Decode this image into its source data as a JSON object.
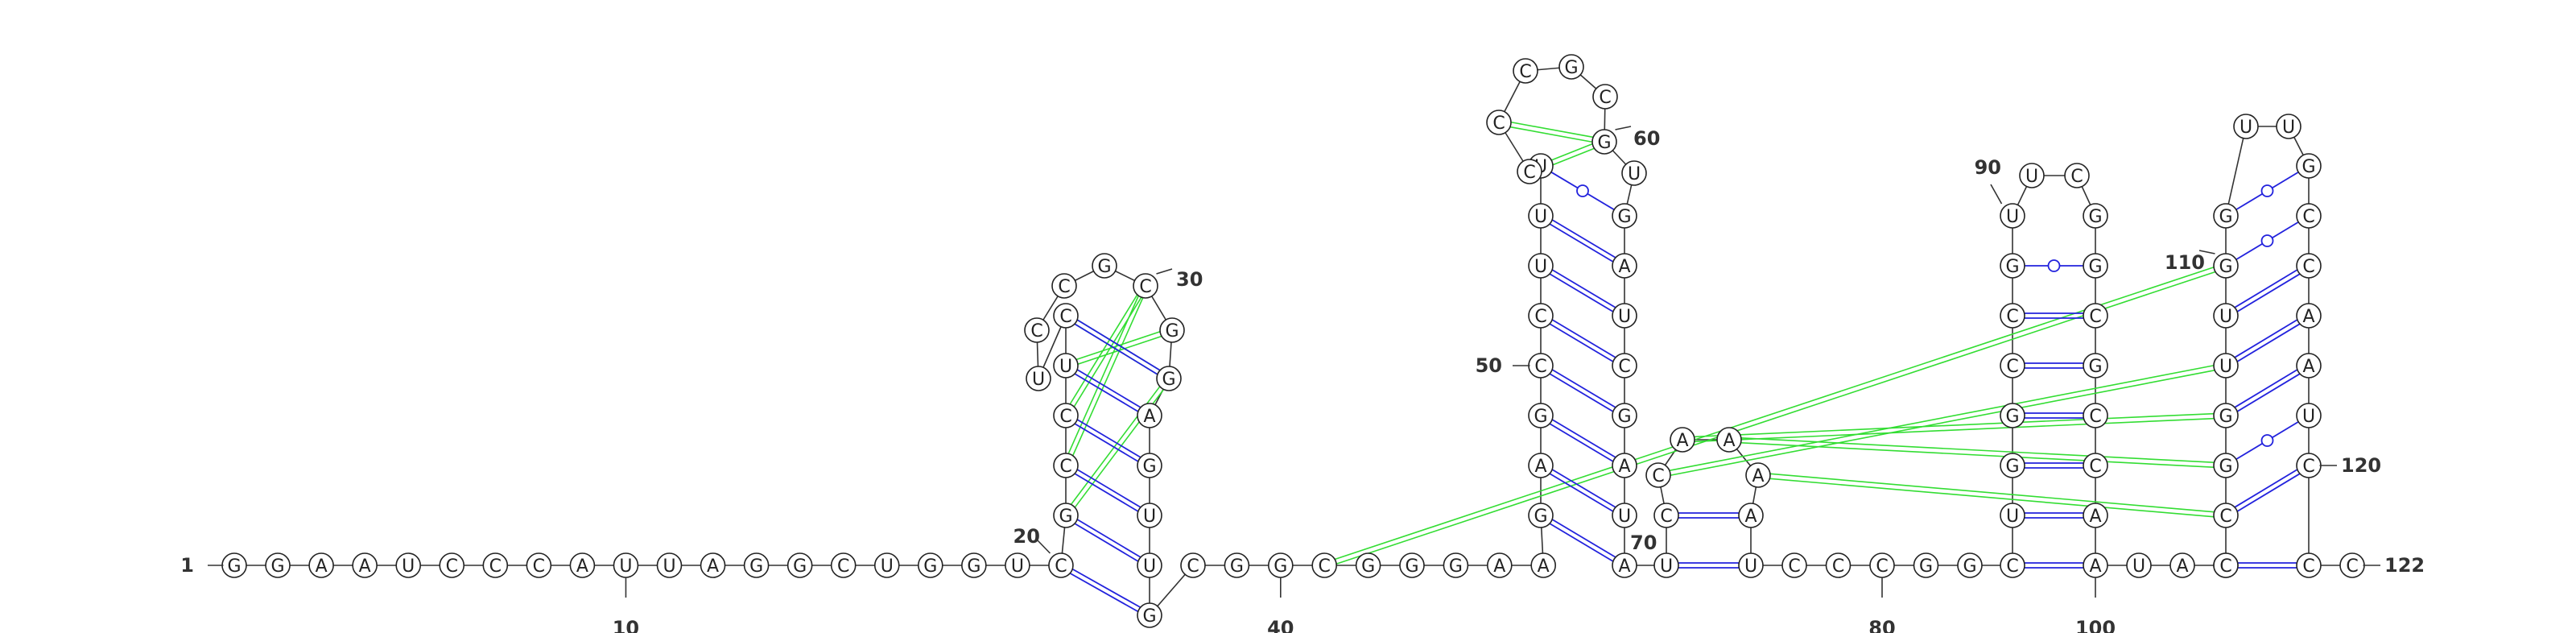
{
  "sequence": "GGAAUCCCAUUAGGCUGGUCGCCUCUCCGCGGAGUUGCGGCGGGAAGAGCCUUUCCCGCGUGAUCGAUAUCCAAAAUCCCGGCUGGCCGUUCGGCGCCAAUAUCCGGUUGGUUGCCAAUCCC",
  "index_labels": [
    {
      "i": 1,
      "text": "1"
    },
    {
      "i": 10,
      "text": "10"
    },
    {
      "i": 20,
      "text": "20"
    },
    {
      "i": 30,
      "text": "30"
    },
    {
      "i": 40,
      "text": "40"
    },
    {
      "i": 50,
      "text": "50"
    },
    {
      "i": 60,
      "text": "60"
    },
    {
      "i": 70,
      "text": "70"
    },
    {
      "i": 80,
      "text": "80"
    },
    {
      "i": 90,
      "text": "90"
    },
    {
      "i": 100,
      "text": "100"
    },
    {
      "i": 110,
      "text": "110"
    },
    {
      "i": 120,
      "text": "120"
    },
    {
      "i": 122,
      "text": "122"
    }
  ],
  "colors": {
    "backbone": "#333333",
    "wc_pair": "#2222dd",
    "gu_pair": "#2222dd",
    "pseudoknot": "#33dd33"
  }
}
